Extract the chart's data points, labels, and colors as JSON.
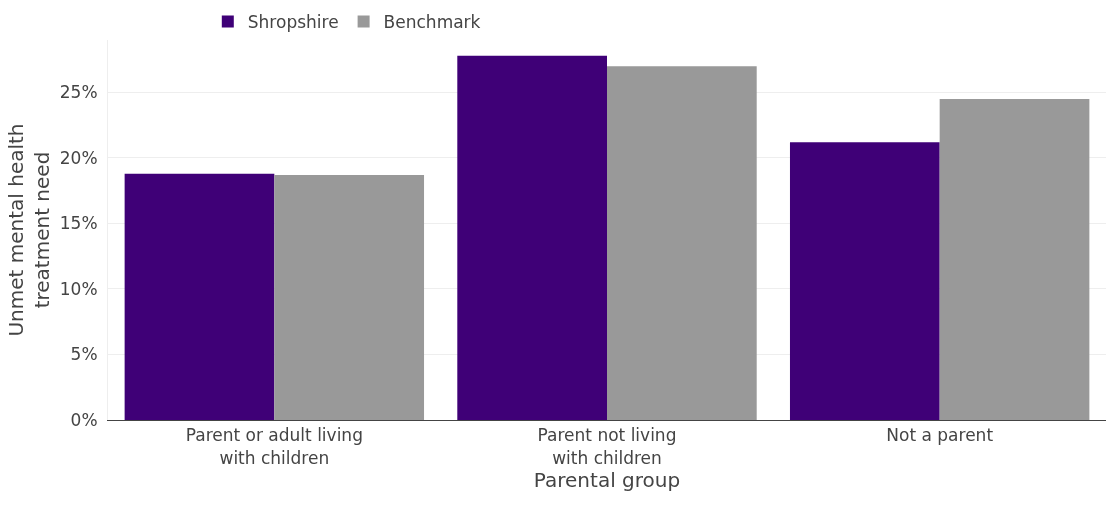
{
  "chart_data": {
    "type": "bar",
    "xlabel": "Parental group",
    "ylabel": "Unmet mental health\ntreatment need",
    "categories": [
      "Parent or adult living\nwith children",
      "Parent not living\nwith children",
      "Not a parent"
    ],
    "series": [
      {
        "name": "Shropshire",
        "color": "#3f0077",
        "values": [
          18.8,
          27.8,
          21.2
        ]
      },
      {
        "name": "Benchmark",
        "color": "#999999",
        "values": [
          18.7,
          27.0,
          24.5
        ]
      }
    ],
    "ylim": [
      0,
      29
    ],
    "yticks": [
      {
        "value": 0,
        "label": "0%"
      },
      {
        "value": 5,
        "label": "5%"
      },
      {
        "value": 10,
        "label": "10%"
      },
      {
        "value": 15,
        "label": "15%"
      },
      {
        "value": 20,
        "label": "20%"
      },
      {
        "value": 25,
        "label": "25%"
      }
    ],
    "grid": "y",
    "legend": "top"
  }
}
